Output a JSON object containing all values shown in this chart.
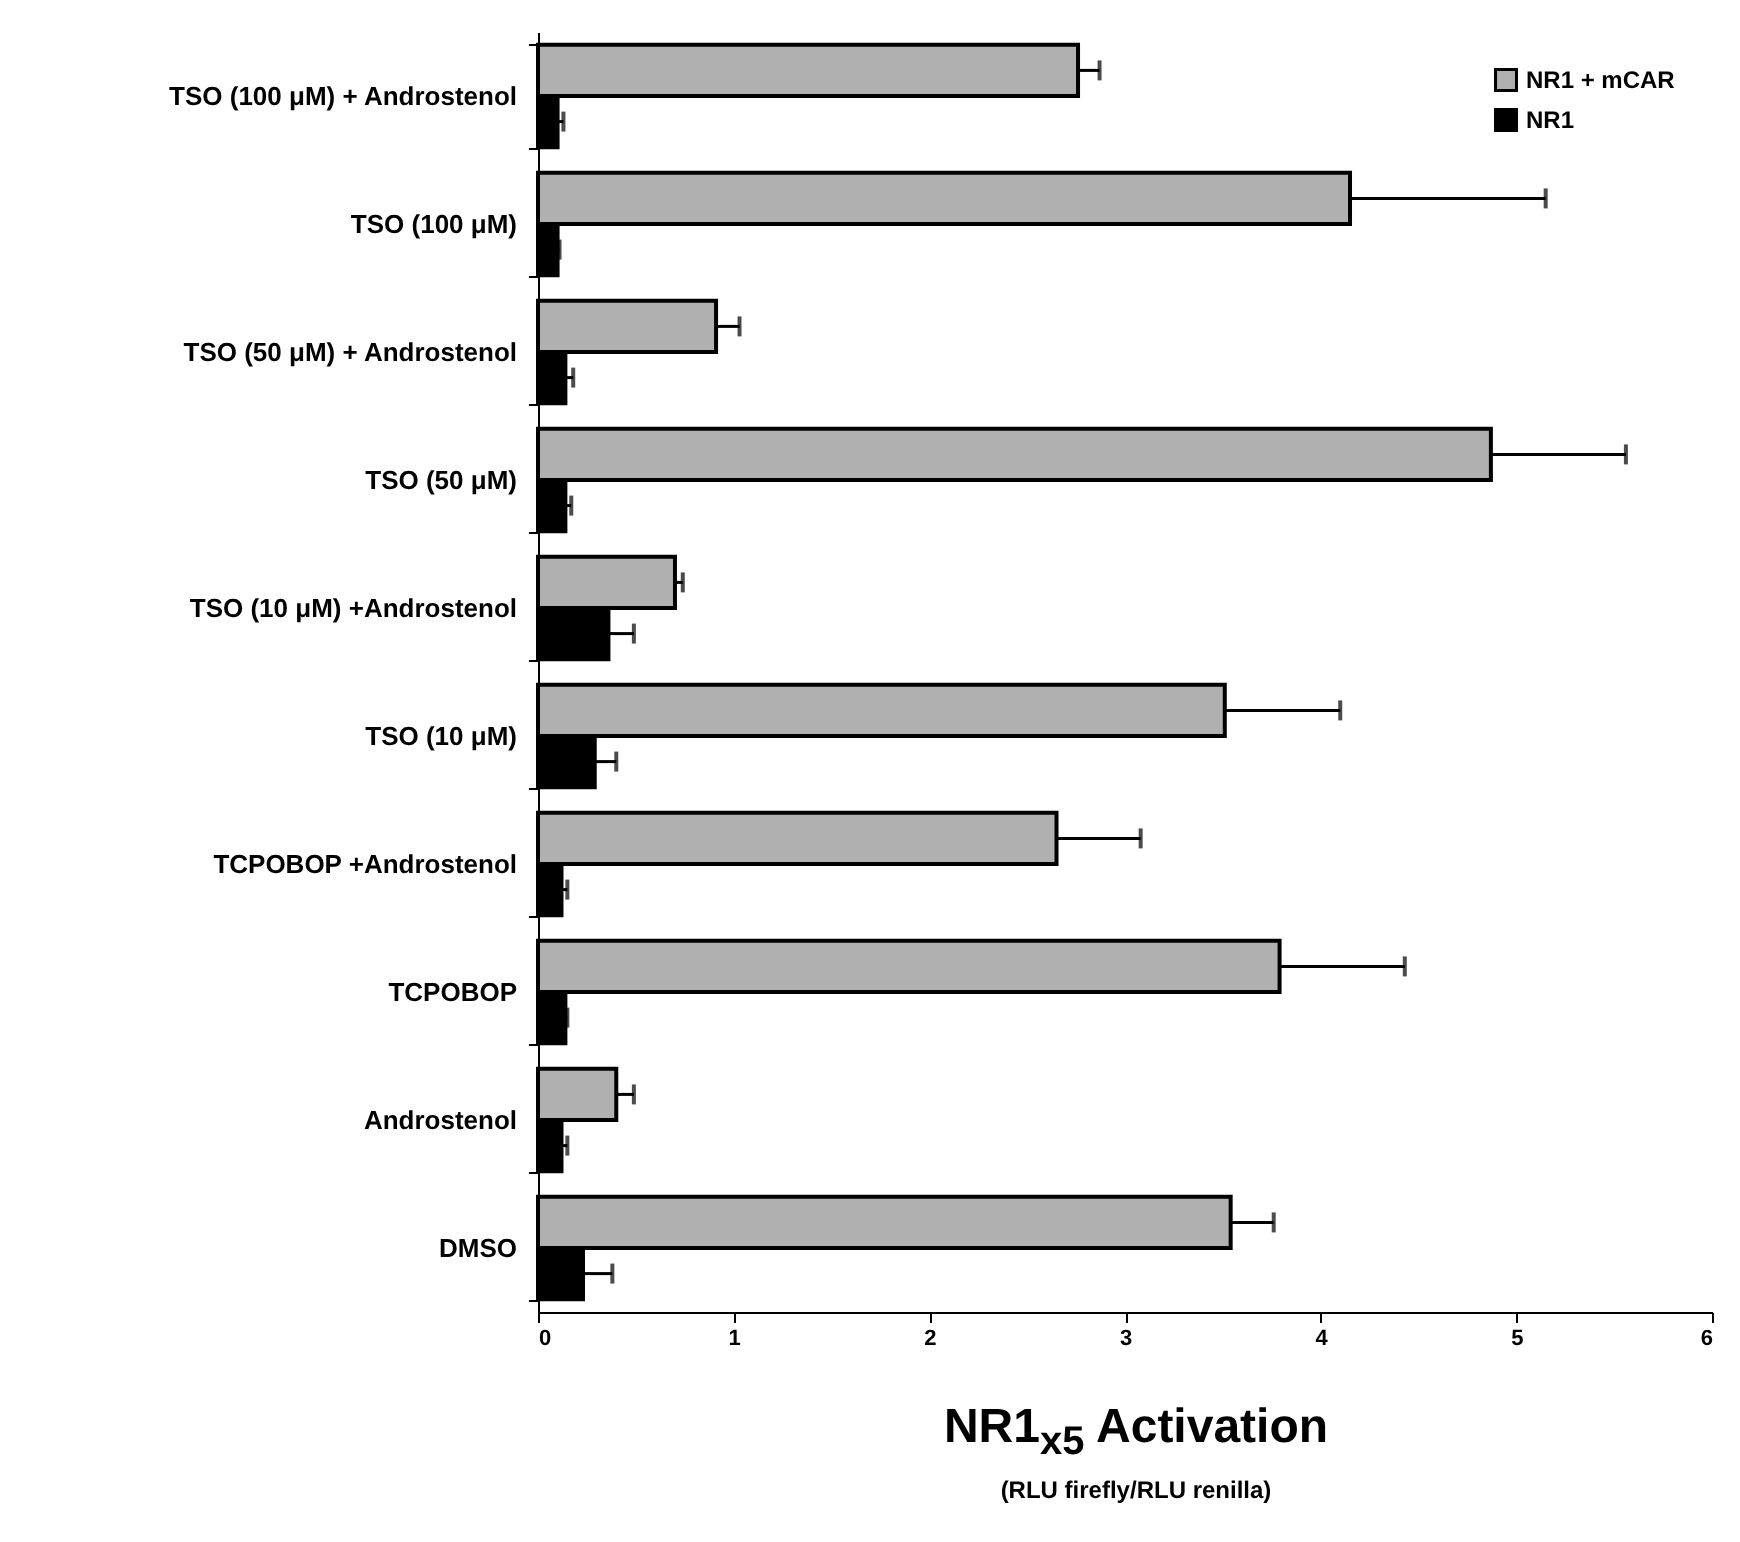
{
  "chart_data": {
    "type": "bar",
    "orientation": "horizontal",
    "xlabel": "NR1$_{x5}$ Activation",
    "annotations": [
      "(RLU firefly/RLU renilla)"
    ],
    "categories": [
      "TSO (100 μM) + Androstenol",
      "TSO (100 μM)",
      "TSO (50 μM) + Androstenol",
      "TSO (50 μM)",
      "TSO (10 μM) +Androstenol",
      "TSO (10 μM)",
      "TCPOBOP +Androstenol",
      "TCPOBOP",
      "Androstenol",
      "DMSO"
    ],
    "series": [
      {
        "name": "NR1 + mCAR",
        "color": "#b0b0b0",
        "values": [
          2.76,
          4.15,
          0.91,
          4.87,
          0.7,
          3.51,
          2.65,
          3.79,
          0.4,
          3.54
        ],
        "errors": [
          [
            2.76,
            2.87
          ],
          [
            4.15,
            5.15
          ],
          [
            0.91,
            1.03
          ],
          [
            4.87,
            5.56
          ],
          [
            0.7,
            0.74
          ],
          [
            3.51,
            4.1
          ],
          [
            2.65,
            3.08
          ],
          [
            3.79,
            4.43
          ],
          [
            0.4,
            0.49
          ],
          [
            3.54,
            3.76
          ]
        ]
      },
      {
        "name": "NR1",
        "color": "#000000",
        "values": [
          0.1,
          0.1,
          0.14,
          0.14,
          0.36,
          0.29,
          0.12,
          0.14,
          0.12,
          0.23
        ],
        "errors": [
          [
            0.1,
            0.13
          ],
          [
            0.1,
            0.11
          ],
          [
            0.14,
            0.18
          ],
          [
            0.14,
            0.17
          ],
          [
            0.36,
            0.49
          ],
          [
            0.29,
            0.4
          ],
          [
            0.12,
            0.15
          ],
          [
            0.14,
            0.15
          ],
          [
            0.12,
            0.15
          ],
          [
            0.23,
            0.38
          ]
        ]
      }
    ],
    "xlim": [
      0,
      6
    ],
    "xticks": [
      0,
      1,
      2,
      3,
      4,
      5,
      6
    ],
    "grid": false,
    "legend": "top right"
  }
}
